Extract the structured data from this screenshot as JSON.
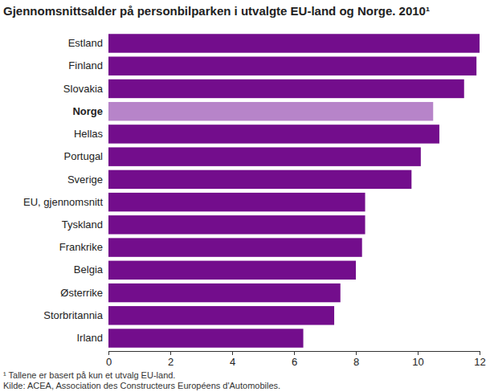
{
  "chart_data": {
    "type": "bar",
    "orientation": "horizontal",
    "title": "Gjennomsnittsalder på personbilparken i utvalgte EU-land og Norge. 2010¹",
    "categories": [
      "Estland",
      "Finland",
      "Slovakia",
      "Norge",
      "Hellas",
      "Portugal",
      "Sverige",
      "EU, gjennomsnitt",
      "Tyskland",
      "Frankrike",
      "Belgia",
      "Østerrike",
      "Storbritannia",
      "Irland"
    ],
    "values": [
      12.0,
      11.9,
      11.5,
      10.5,
      10.7,
      10.1,
      9.8,
      8.3,
      8.3,
      8.2,
      8.0,
      7.5,
      7.3,
      6.3
    ],
    "colors": [
      "#730d8c",
      "#730d8c",
      "#730d8c",
      "#b784c9",
      "#730d8c",
      "#730d8c",
      "#730d8c",
      "#730d8c",
      "#730d8c",
      "#730d8c",
      "#730d8c",
      "#730d8c",
      "#730d8c",
      "#730d8c"
    ],
    "xlim": [
      0,
      12
    ],
    "xticks": [
      0,
      2,
      4,
      6,
      8,
      10,
      12
    ],
    "grid": false,
    "annotations": [
      "¹ Tallene er basert på kun et utvalg EU-land.",
      "Kilde: ACEA, Association des Constructeurs Européens d'Automobiles."
    ]
  }
}
